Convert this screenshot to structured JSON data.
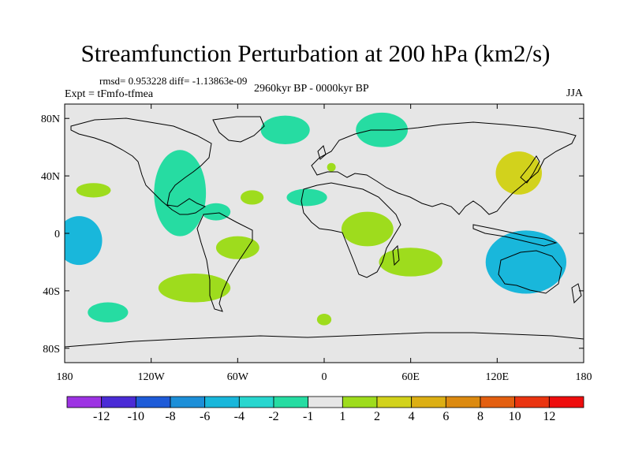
{
  "title": "Streamfunction Perturbation at 200 hPa (km2/s)",
  "stats_line": "rmsd= 0.953228 diff= -1.13863e-09",
  "experiment_label": "Expt = tFmfo-tfmea",
  "period_label": "2960kyr BP - 0000kyr BP",
  "season_label": "JJA",
  "chart_data": {
    "type": "heatmap",
    "description_variable": "200 hPa streamfunction perturbation",
    "units": "km2/s",
    "xlim": [
      -180,
      180
    ],
    "ylim": [
      -90,
      90
    ],
    "x_ticks": [
      {
        "value": -180,
        "label": "180"
      },
      {
        "value": -120,
        "label": "120W"
      },
      {
        "value": -60,
        "label": "60W"
      },
      {
        "value": 0,
        "label": "0"
      },
      {
        "value": 60,
        "label": "60E"
      },
      {
        "value": 120,
        "label": "120E"
      },
      {
        "value": 180,
        "label": "180"
      }
    ],
    "y_ticks": [
      {
        "value": 80,
        "label": "80N"
      },
      {
        "value": 40,
        "label": "40N"
      },
      {
        "value": 0,
        "label": "0"
      },
      {
        "value": -40,
        "label": "40S"
      },
      {
        "value": -80,
        "label": "80S"
      }
    ],
    "colorbar": {
      "labels": [
        "-12",
        "-10",
        "-8",
        "-6",
        "-4",
        "-2",
        "-1",
        "1",
        "2",
        "4",
        "6",
        "8",
        "10",
        "12"
      ],
      "colors": [
        "#9d33e3",
        "#4a2bd6",
        "#1e5bd8",
        "#1d8fd8",
        "#19b7db",
        "#28d6cf",
        "#26dca2",
        "#e6e6e6",
        "#9edc1d",
        "#d2d21c",
        "#dcaf14",
        "#dc8a10",
        "#e35f10",
        "#ea3410",
        "#ee0d0d"
      ]
    },
    "background_color": "#e6e6e6",
    "contour_regions": [
      {
        "name": "n-atlantic-low",
        "level": "-1 to -2",
        "color": "#26dca2",
        "lon": -27,
        "lat": 72,
        "rlon": 17,
        "rlat": 10
      },
      {
        "name": "arctic-low",
        "level": "-1 to -2",
        "color": "#26dca2",
        "lon": 40,
        "lat": 72,
        "rlon": 18,
        "rlat": 12
      },
      {
        "name": "n-america-low",
        "level": "-1 to -2",
        "color": "#26dca2",
        "lon": -100,
        "lat": 28,
        "rlon": 18,
        "rlat": 30
      },
      {
        "name": "central-atlantic-low",
        "level": "-1 to -2",
        "color": "#26dca2",
        "lon": -12,
        "lat": 25,
        "rlon": 14,
        "rlat": 6
      },
      {
        "name": "caribbean-low",
        "level": "-1 to -2",
        "color": "#26dca2",
        "lon": -75,
        "lat": 15,
        "rlon": 10,
        "rlat": 6
      },
      {
        "name": "pacific-equatorial-low",
        "level": "-2 to -4",
        "color": "#19b7db",
        "lon": -170,
        "lat": -5,
        "rlon": 16,
        "rlat": 17
      },
      {
        "name": "s-pacific-low",
        "level": "-1 to -2",
        "color": "#26dca2",
        "lon": -150,
        "lat": -55,
        "rlon": 14,
        "rlat": 7
      },
      {
        "name": "australia-low",
        "level": "-2 to -4",
        "color": "#19b7db",
        "lon": 140,
        "lat": -20,
        "rlon": 28,
        "rlat": 22
      },
      {
        "name": "s-africa-high",
        "level": "1 to 2",
        "color": "#9edc1d",
        "lon": 60,
        "lat": -20,
        "rlon": 22,
        "rlat": 10
      },
      {
        "name": "s-america-high",
        "level": "1 to 2",
        "color": "#9edc1d",
        "lon": -90,
        "lat": -38,
        "rlon": 25,
        "rlat": 10
      },
      {
        "name": "japan-high",
        "level": "2 to 4",
        "color": "#d2d21c",
        "lon": 135,
        "lat": 42,
        "rlon": 16,
        "rlat": 15
      },
      {
        "name": "africa-high",
        "level": "1 to 2",
        "color": "#9edc1d",
        "lon": 30,
        "lat": 3,
        "rlon": 18,
        "rlat": 12
      },
      {
        "name": "e-pacific-high",
        "level": "1 to 2",
        "color": "#9edc1d",
        "lon": -160,
        "lat": 30,
        "rlon": 12,
        "rlat": 5
      },
      {
        "name": "w-atlantic-high",
        "level": "1 to 2",
        "color": "#9edc1d",
        "lon": -60,
        "lat": -10,
        "rlon": 15,
        "rlat": 8
      },
      {
        "name": "mid-atlantic-high",
        "level": "1 to 2",
        "color": "#9edc1d",
        "lon": -50,
        "lat": 25,
        "rlon": 8,
        "rlat": 5
      },
      {
        "name": "south-atlantic-high",
        "level": "1 to 2",
        "color": "#9edc1d",
        "lon": 0,
        "lat": -60,
        "rlon": 5,
        "rlat": 4
      },
      {
        "name": "europe-high",
        "level": "1 to 2",
        "color": "#9edc1d",
        "lon": 5,
        "lat": 46,
        "rlon": 3,
        "rlat": 3
      }
    ]
  }
}
